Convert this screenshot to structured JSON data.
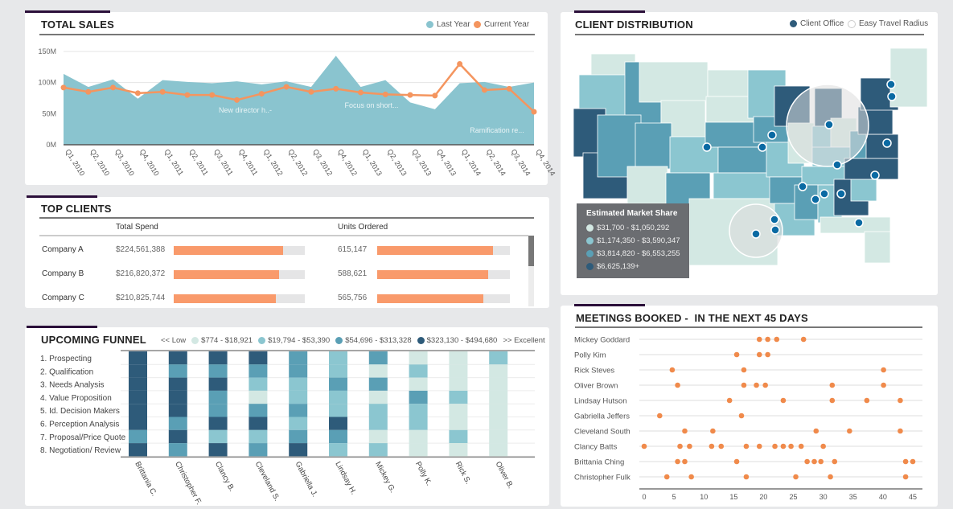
{
  "total_sales": {
    "title": "TOTAL SALES",
    "legend": [
      {
        "label": "Last Year",
        "color": "#8ac4cf"
      },
      {
        "label": "Current Year",
        "color": "#f4955f"
      }
    ],
    "annotations": [
      "New director h..-",
      "Focus on short...",
      "Ramification re..."
    ]
  },
  "top_clients": {
    "title": "TOP CLIENTS",
    "columns": [
      "Total Spend",
      "Units Ordered"
    ],
    "rows": [
      {
        "company": "Company A",
        "spend": "$224,561,388",
        "spend_value": 224561388,
        "units": "615,147",
        "units_value": 615147
      },
      {
        "company": "Company B",
        "spend": "$216,820,372",
        "spend_value": 216820372,
        "units": "588,621",
        "units_value": 588621
      },
      {
        "company": "Company C",
        "spend": "$210,825,744",
        "spend_value": 210825744,
        "units": "565,756",
        "units_value": 565756
      }
    ],
    "spend_bar_max": 270000000,
    "units_bar_max": 705000
  },
  "funnel": {
    "title": "UPCOMING FUNNEL",
    "legend_low": "<< Low",
    "legend_high": ">> Excellent",
    "levels": [
      {
        "label": "$774 - $18,921",
        "color": "#d3e8e3"
      },
      {
        "label": "$19,794 - $53,390",
        "color": "#8bc6d0"
      },
      {
        "label": "$54,696 - $313,328",
        "color": "#5a9fb5"
      },
      {
        "label": "$323,130 - $494,680",
        "color": "#2e5b7a"
      }
    ]
  },
  "map": {
    "title": "CLIENT DISTRIBUTION",
    "legend": [
      {
        "label": "Client Office",
        "color": "#2e5b7a"
      },
      {
        "label": "Easy Travel Radius",
        "color": "#ffffff"
      }
    ],
    "share_title": "Estimated Market Share",
    "share_levels": [
      {
        "label": "$31,700 - $1,050,292",
        "color": "#d3e8e3"
      },
      {
        "label": "$1,174,350 - $3,590,347",
        "color": "#8bc6d0"
      },
      {
        "label": "$3,814,820 - $6,553,255",
        "color": "#5a9fb5"
      },
      {
        "label": "$6,625,139+",
        "color": "#2e5b7a"
      }
    ],
    "state_tiers": {
      "WA": 1,
      "OR": 2,
      "CA": 4,
      "ID": 3,
      "NV": 3,
      "MT": 1,
      "WY": 1,
      "UT": 3,
      "AZ": 1,
      "CO": 2,
      "NM": 3,
      "ND": 1,
      "SD": 1,
      "NE": 3,
      "KS": 3,
      "OK": 2,
      "TX": 1,
      "MN": 2,
      "IA": 3,
      "MO": 2,
      "AR": 3,
      "LA": 2,
      "WI": 4,
      "IL": 1,
      "MI": 4,
      "IN": 2,
      "OH": 1,
      "KY": 2,
      "TN": 2,
      "MS": 3,
      "AL": 2,
      "GA": 4,
      "FL": 1,
      "SC": 2,
      "NC": 4,
      "VA": 4,
      "WV": 3,
      "PA": 4,
      "NY": 4,
      "NE_REGION": 1
    }
  },
  "meetings": {
    "title": "MEETINGS BOOKED -  IN THE NEXT 45 DAYS"
  },
  "chart_data": [
    {
      "type": "area",
      "title": "TOTAL SALES",
      "categories": [
        "Q1, 2010",
        "Q2, 2010",
        "Q3, 2010",
        "Q4, 2010",
        "Q1, 2011",
        "Q2, 2011",
        "Q3, 2011",
        "Q4, 2011",
        "Q1, 2012",
        "Q2, 2012",
        "Q3, 2012",
        "Q4, 2012",
        "Q1, 2013",
        "Q2, 2013",
        "Q3, 2013",
        "Q4, 2013",
        "Q1, 2014",
        "Q2, 2014",
        "Q3, 2014",
        "Q4, 2014"
      ],
      "y_ticks": [
        "150M",
        "100M",
        "50M",
        "0M"
      ],
      "ylim": [
        0,
        150
      ],
      "grid": true,
      "legend": "top-right",
      "series": [
        {
          "name": "Last Year",
          "type": "area",
          "values": [
            114,
            93,
            105,
            74,
            104,
            101,
            99,
            102,
            97,
            102,
            93,
            143,
            93,
            104,
            68,
            57,
            99,
            101,
            93,
            100
          ]
        },
        {
          "name": "Current Year",
          "type": "line",
          "values": [
            92,
            85,
            92,
            83,
            85,
            80,
            80,
            72,
            82,
            93,
            85,
            90,
            84,
            81,
            80,
            79,
            130,
            88,
            90,
            53
          ]
        }
      ]
    },
    {
      "type": "heatmap",
      "title": "UPCOMING FUNNEL",
      "rows": [
        "1. Prospecting",
        "2. Qualification",
        "3. Needs Analysis",
        "4. Value Proposition",
        "5. Id. Decision Makers",
        "6. Perception Analysis",
        "7. Proposal/Price Quote",
        "8. Negotiation/ Review"
      ],
      "columns": [
        "Brittania C.",
        "Christopher F.",
        "Clancy B.",
        "Cleveland S.",
        "Gabriella J.",
        "Lindsay H.",
        "Mickey G.",
        "Polly K.",
        "Rick S.",
        "Oliver B."
      ],
      "levels_by_column": [
        [
          4,
          4,
          4,
          4,
          4,
          4,
          3,
          4
        ],
        [
          4,
          3,
          4,
          4,
          4,
          3,
          4,
          3
        ],
        [
          4,
          3,
          4,
          3,
          3,
          4,
          2,
          4
        ],
        [
          4,
          3,
          2,
          1,
          3,
          4,
          2,
          3
        ],
        [
          3,
          3,
          2,
          2,
          3,
          2,
          3,
          4
        ],
        [
          2,
          2,
          3,
          2,
          2,
          4,
          3,
          2
        ],
        [
          3,
          1,
          3,
          1,
          2,
          2,
          1,
          2
        ],
        [
          1,
          2,
          1,
          3,
          2,
          2,
          1,
          1
        ],
        [
          1,
          1,
          1,
          2,
          1,
          1,
          2,
          1
        ],
        [
          2,
          1,
          1,
          1,
          1,
          1,
          1,
          1
        ]
      ]
    },
    {
      "type": "scatter",
      "title": "MEETINGS BOOKED -  IN THE NEXT 45 DAYS",
      "x_ticks": [
        0,
        5,
        10,
        15,
        20,
        25,
        30,
        35,
        40,
        45
      ],
      "xlim": [
        0,
        45
      ],
      "series": [
        {
          "name": "Mickey Goddard",
          "values": [
            19.3,
            20.7,
            22.2,
            26.7
          ]
        },
        {
          "name": "Polly Kim",
          "values": [
            15.5,
            19.3,
            20.7
          ]
        },
        {
          "name": "Rick Steves",
          "values": [
            4.7,
            16.7,
            40.1
          ]
        },
        {
          "name": "Oliver Brown",
          "values": [
            5.6,
            16.7,
            18.8,
            20.3,
            31.5,
            40.1
          ]
        },
        {
          "name": "Lindsay Hutson",
          "values": [
            14.3,
            23.3,
            31.5,
            37.3,
            42.9
          ]
        },
        {
          "name": "Gabriella Jeffers",
          "values": [
            2.6,
            16.3
          ]
        },
        {
          "name": "Cleveland South",
          "values": [
            6.8,
            11.5,
            28.8,
            34.4,
            42.9
          ]
        },
        {
          "name": "Clancy Batts",
          "values": [
            0,
            6.0,
            7.6,
            11.3,
            12.9,
            17.1,
            19.3,
            21.9,
            23.3,
            24.6,
            26.3,
            30.0
          ]
        },
        {
          "name": "Brittania Ching",
          "values": [
            5.6,
            6.8,
            15.5,
            27.3,
            28.5,
            29.6,
            31.9,
            43.8,
            45
          ]
        },
        {
          "name": "Christopher Fulk",
          "values": [
            3.8,
            7.9,
            17.1,
            25.4,
            31.2,
            43.8
          ]
        }
      ]
    }
  ]
}
